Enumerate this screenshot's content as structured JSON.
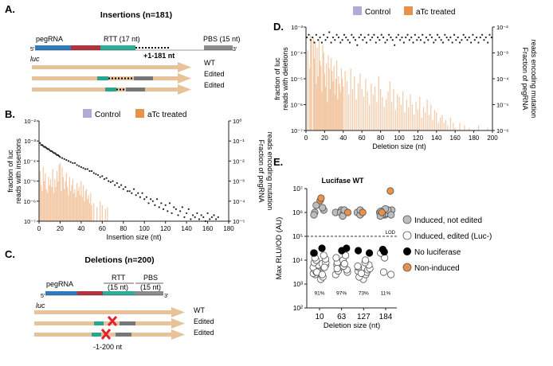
{
  "panels": {
    "A": {
      "letter": "A.",
      "title": "Insertions (n=181)",
      "five_prime": "5'",
      "three_prime": "3'",
      "pegrna": "pegRNA",
      "rtt": "RTT (17 nt)",
      "pbs": "PBS (15 nt)",
      "insert": "+1-181 nt",
      "luc": "luc",
      "rows": [
        "WT",
        "Edited",
        "Edited"
      ]
    },
    "B": {
      "letter": "B.",
      "legend": [
        "Control",
        "aTc treated"
      ]
    },
    "C": {
      "letter": "C.",
      "title": "Deletions (n=200)",
      "five_prime": "5'",
      "three_prime": "3'",
      "pegrna": "pegRNA",
      "rtt": "RTT",
      "rtt_len": "(15 nt)",
      "pbs": "PBS",
      "pbs_len": "(15 nt)",
      "luc": "luc",
      "rows": [
        "WT",
        "Edited",
        "Edited"
      ],
      "deletion": "-1-200 nt"
    },
    "D": {
      "letter": "D.",
      "legend": [
        "Control",
        "aTc treated"
      ]
    },
    "E": {
      "letter": "E.",
      "title": "Lucifase WT",
      "lod": "LOD",
      "legend": [
        "Induced, not edited",
        "Induced, edited (Luc-)",
        "No luciferase",
        "Non-induced"
      ]
    }
  },
  "colors": {
    "control": "#b3a8d6",
    "atc": "#e8914a",
    "bar": "#f3c8a4",
    "arrow": "#e8c39a",
    "teal": "#27a88e",
    "pegrna_blue": "#2e7bbf",
    "pegrna_red": "#b8323e",
    "rtt_green": "#2bae9a",
    "pbs_gray": "#8c8c8c",
    "grey_pt": "#bdbdbd",
    "black_pt": "#000000",
    "orange_pt": "#e8914a",
    "red_x": "#e3232c"
  },
  "chart_data": [
    {
      "id": "B",
      "type": "bar",
      "title": "",
      "xlabel": "Insertion size (nt)",
      "ylabel_left": "fraction of luc reads with insertions",
      "ylabel_right": "Fraction of pegRNA reads encoding mutation",
      "x_ticks": [
        0,
        20,
        40,
        60,
        80,
        100,
        120,
        140,
        160,
        180
      ],
      "xlim": [
        0,
        180
      ],
      "y_left_ticks": [
        -7,
        -6,
        -5,
        -4,
        -3,
        -2
      ],
      "y_left_labels": [
        "10⁻⁷",
        "10⁻⁶",
        "10⁻⁵",
        "10⁻⁴",
        "10⁻³",
        "10⁻²"
      ],
      "y_right_ticks": [
        -5,
        -4,
        -3,
        -2,
        -1,
        0
      ],
      "y_right_labels": [
        "10⁻⁵",
        "10⁻⁴",
        "10⁻³",
        "10⁻²",
        "10⁻¹",
        "10⁰"
      ],
      "series": [
        {
          "name": "aTc treated (luc reads, log10)",
          "x": [
            1,
            2,
            3,
            4,
            5,
            6,
            7,
            8,
            9,
            10,
            11,
            12,
            13,
            14,
            15,
            16,
            17,
            18,
            19,
            20,
            21,
            22,
            23,
            24,
            25,
            26,
            27,
            28,
            29,
            30,
            31,
            32,
            33,
            34,
            35,
            36,
            37,
            38,
            39,
            40,
            41,
            42,
            43,
            44,
            45,
            46,
            47,
            48,
            49,
            50,
            52,
            55,
            58,
            60,
            63,
            65
          ],
          "values": [
            -4.5,
            -5.2,
            -5.5,
            -4.3,
            -5.0,
            -4.6,
            -5.4,
            -5.6,
            -4.8,
            -5.2,
            -4.9,
            -5.3,
            -4.4,
            -5.6,
            -4.9,
            -5.3,
            -4.5,
            -5.0,
            -4.2,
            -4.1,
            -5.5,
            -4.3,
            -4.8,
            -5.4,
            -5.0,
            -4.6,
            -5.3,
            -5.7,
            -4.8,
            -5.5,
            -5.2,
            -4.9,
            -5.6,
            -5.4,
            -5.8,
            -5.1,
            -5.5,
            -5.3,
            -5.7,
            -5.0,
            -5.8,
            -5.2,
            -6.0,
            -5.5,
            -5.4,
            -5.9,
            -5.7,
            -6.1,
            -5.6,
            -6.2,
            -6.1,
            -6.3,
            -6.0,
            -6.2,
            -6.4,
            -6.3
          ]
        },
        {
          "name": "pegRNA reads encoding mutation (log10)",
          "x": [
            1,
            2,
            3,
            4,
            5,
            6,
            7,
            8,
            9,
            10,
            11,
            12,
            13,
            14,
            15,
            16,
            17,
            18,
            19,
            20,
            22,
            24,
            26,
            28,
            30,
            32,
            34,
            36,
            38,
            40,
            42,
            44,
            46,
            48,
            50,
            52,
            54,
            56,
            58,
            60,
            62,
            64,
            66,
            68,
            70,
            72,
            74,
            76,
            78,
            80,
            82,
            84,
            86,
            88,
            90,
            92,
            94,
            96,
            98,
            100,
            102,
            104,
            106,
            108,
            110,
            112,
            114,
            116,
            118,
            120,
            122,
            124,
            126,
            128,
            130,
            132,
            134,
            136,
            138,
            140,
            142,
            144,
            146,
            148,
            150,
            152,
            154,
            156,
            158,
            160,
            162,
            164,
            166,
            168,
            170
          ],
          "values": [
            -1.1,
            -1.2,
            -1.2,
            -1.25,
            -1.3,
            -1.3,
            -1.35,
            -1.4,
            -1.4,
            -1.45,
            -1.5,
            -1.5,
            -1.55,
            -1.6,
            -1.6,
            -1.65,
            -1.7,
            -1.7,
            -1.75,
            -1.8,
            -1.85,
            -1.9,
            -1.95,
            -2.0,
            -2.05,
            -2.1,
            -2.1,
            -2.2,
            -2.25,
            -2.3,
            -2.35,
            -2.4,
            -2.4,
            -2.5,
            -2.5,
            -2.6,
            -2.65,
            -2.7,
            -2.8,
            -2.75,
            -2.9,
            -2.85,
            -3.0,
            -3.05,
            -3.0,
            -3.2,
            -3.1,
            -3.3,
            -3.2,
            -3.4,
            -3.3,
            -3.5,
            -3.5,
            -3.6,
            -3.4,
            -3.7,
            -3.6,
            -3.8,
            -3.6,
            -3.9,
            -3.8,
            -4.1,
            -3.9,
            -4.0,
            -4.2,
            -3.9,
            -4.3,
            -4.1,
            -4.4,
            -4.2,
            -4.5,
            -4.1,
            -4.6,
            -4.3,
            -4.4,
            -4.7,
            -4.5,
            -4.3,
            -4.8,
            -4.6,
            -4.4,
            -4.9,
            -4.7,
            -4.8,
            -4.6,
            -4.9,
            -4.7,
            -4.8,
            -5.0,
            -4.6,
            -4.9,
            -4.8,
            -4.7,
            -4.9,
            -4.8
          ]
        }
      ]
    },
    {
      "id": "D",
      "type": "bar",
      "title": "",
      "xlabel": "Deletion size (nt)",
      "ylabel_left": "fraction of luc reads with deletions",
      "ylabel_right": "Fraction of pegRNA reads encoding mutation",
      "x_ticks": [
        0,
        20,
        40,
        60,
        80,
        100,
        120,
        140,
        160,
        180,
        200
      ],
      "xlim": [
        0,
        200
      ],
      "y_left_ticks": [
        -7,
        -6,
        -5,
        -4,
        -3
      ],
      "y_left_labels": [
        "10⁻⁷",
        "10⁻⁶",
        "10⁻⁵",
        "10⁻⁴",
        "10⁻³"
      ],
      "y_right_ticks": [
        -6,
        -5,
        -4,
        -3,
        -2
      ],
      "y_right_labels": [
        "10⁻⁶",
        "10⁻⁵",
        "10⁻⁴",
        "10⁻³",
        "10⁻²"
      ],
      "series": [
        {
          "name": "aTc treated (luc reads, log10)",
          "x": [
            2,
            4,
            5,
            6,
            8,
            9,
            10,
            11,
            12,
            13,
            14,
            15,
            16,
            17,
            18,
            19,
            20,
            21,
            22,
            23,
            24,
            25,
            26,
            27,
            28,
            29,
            30,
            31,
            32,
            33,
            34,
            35,
            36,
            37,
            38,
            39,
            40,
            42,
            44,
            46,
            48,
            50,
            52,
            54,
            56,
            58,
            60,
            62,
            64,
            66,
            68,
            70,
            72,
            74,
            76,
            78,
            80,
            82,
            84,
            86,
            88,
            90,
            92,
            94,
            96,
            98,
            100,
            102,
            104,
            106,
            108,
            110,
            112,
            114,
            116,
            118,
            120,
            122,
            124,
            126,
            128,
            130,
            132,
            134,
            136,
            138,
            140,
            142,
            144,
            146,
            148,
            150,
            152,
            155,
            158,
            160,
            165,
            170,
            175,
            185,
            195
          ],
          "values": [
            -3.9,
            -4.6,
            -3.3,
            -3.5,
            -3.4,
            -4.2,
            -3.6,
            -5.2,
            -3.8,
            -4.9,
            -3.5,
            -4.3,
            -4.5,
            -5.5,
            -3.7,
            -4.0,
            -4.8,
            -5.3,
            -4.4,
            -5.9,
            -4.1,
            -4.6,
            -5.4,
            -4.2,
            -4.7,
            -5.1,
            -4.5,
            -5.6,
            -5.0,
            -4.3,
            -5.8,
            -4.9,
            -5.2,
            -5.5,
            -4.6,
            -5.0,
            -5.3,
            -4.7,
            -5.1,
            -5.6,
            -4.6,
            -5.4,
            -4.9,
            -5.8,
            -5.2,
            -4.8,
            -5.4,
            -5.7,
            -5.0,
            -5.5,
            -6.0,
            -5.2,
            -5.6,
            -5.3,
            -5.9,
            -4.9,
            -5.4,
            -5.7,
            -6.1,
            -5.8,
            -5.5,
            -5.1,
            -5.9,
            -5.4,
            -6.2,
            -5.6,
            -5.7,
            -6.0,
            -5.5,
            -6.3,
            -5.8,
            -6.1,
            -5.6,
            -6.0,
            -6.4,
            -5.9,
            -6.2,
            -5.7,
            -6.5,
            -6.1,
            -6.3,
            -5.8,
            -6.4,
            -6.0,
            -6.6,
            -6.2,
            -6.3,
            -6.7,
            -6.5,
            -6.4,
            -6.7,
            -6.6,
            -6.8,
            -6.5,
            -6.7,
            -6.9,
            -6.7,
            -6.8,
            -6.9,
            -6.8,
            -6.9
          ]
        },
        {
          "name": "pegRNA reads encoding mutation (log10)",
          "x": [
            1,
            3,
            5,
            7,
            9,
            11,
            13,
            15,
            17,
            19,
            21,
            23,
            25,
            27,
            29,
            31,
            33,
            35,
            37,
            39,
            41,
            43,
            45,
            47,
            49,
            51,
            53,
            55,
            57,
            59,
            61,
            63,
            65,
            67,
            69,
            71,
            73,
            75,
            77,
            79,
            81,
            83,
            85,
            87,
            89,
            91,
            93,
            95,
            97,
            99,
            101,
            103,
            105,
            107,
            109,
            111,
            113,
            115,
            117,
            119,
            121,
            123,
            125,
            127,
            129,
            131,
            133,
            135,
            137,
            139,
            141,
            143,
            145,
            147,
            149,
            151,
            153,
            155,
            157,
            159,
            161,
            163,
            165,
            167,
            169,
            171,
            173,
            175,
            177,
            179,
            181,
            183,
            185,
            187,
            189,
            191,
            193,
            195,
            197,
            199
          ],
          "values": [
            -2.4,
            -2.3,
            -2.5,
            -2.4,
            -2.6,
            -2.3,
            -2.5,
            -2.4,
            -2.6,
            -2.3,
            -2.5,
            -2.4,
            -2.2,
            -2.6,
            -2.4,
            -2.5,
            -2.3,
            -2.4,
            -2.6,
            -2.5,
            -2.3,
            -2.4,
            -2.5,
            -2.6,
            -2.3,
            -2.4,
            -2.5,
            -2.7,
            -2.4,
            -2.3,
            -2.5,
            -2.4,
            -2.6,
            -2.3,
            -2.5,
            -2.4,
            -2.3,
            -2.6,
            -2.4,
            -2.5,
            -2.3,
            -2.4,
            -2.6,
            -2.5,
            -2.3,
            -2.4,
            -2.5,
            -2.7,
            -2.4,
            -2.3,
            -2.5,
            -2.4,
            -2.6,
            -2.4,
            -2.3,
            -2.5,
            -2.4,
            -2.6,
            -2.3,
            -2.5,
            -2.4,
            -2.5,
            -2.3,
            -2.6,
            -2.4,
            -2.5,
            -2.3,
            -2.4,
            -2.6,
            -2.5,
            -2.3,
            -2.4,
            -2.5,
            -2.6,
            -2.3,
            -2.4,
            -2.5,
            -2.4,
            -2.6,
            -2.3,
            -2.5,
            -2.4,
            -2.6,
            -2.5,
            -2.3,
            -2.4,
            -2.5,
            -2.4,
            -2.6,
            -2.3,
            -2.5,
            -2.4,
            -2.6,
            -2.4,
            -2.3,
            -2.5,
            -2.4,
            -2.6,
            -2.3,
            -2.4
          ]
        }
      ]
    },
    {
      "id": "E",
      "type": "scatter",
      "title": "Lucifase WT",
      "xlabel": "Deletion size (nt)",
      "ylabel": "Max RLU/OD (AU)",
      "categories": [
        "10",
        "63",
        "127",
        "184"
      ],
      "y_ticks": [
        2,
        3,
        4,
        5,
        6,
        7
      ],
      "y_labels": [
        "10²",
        "10³",
        "10⁴",
        "10⁵",
        "10⁶",
        "10⁷"
      ],
      "lod": 5,
      "percent_labels": [
        "91%",
        "97%",
        "73%",
        "11%"
      ],
      "series": [
        {
          "name": "Induced, not edited",
          "values": [
            [
              6.0,
              6.1,
              6.2,
              5.9,
              6.3
            ],
            [
              5.9,
              6.0,
              6.1,
              6.0,
              5.95,
              6.05,
              5.85,
              6.1
            ],
            [
              6.0,
              5.9,
              6.1
            ],
            [
              5.9,
              6.0,
              6.1,
              6.05,
              5.95,
              6.0,
              5.9,
              6.1,
              6.0,
              5.85,
              6.15,
              5.9,
              6.05
            ]
          ]
        },
        {
          "name": "Induced, edited (Luc-)",
          "values": [
            [
              3.2,
              3.3,
              3.4,
              3.45,
              3.5,
              3.55,
              3.6,
              3.6,
              3.65,
              3.7,
              3.75,
              3.8,
              3.8,
              3.85,
              3.9,
              3.9,
              4.0,
              4.05,
              4.1,
              4.2,
              4.3,
              3.5,
              3.7,
              3.4
            ],
            [
              3.4,
              3.5,
              3.6,
              3.7,
              3.75,
              3.8,
              3.9,
              4.0,
              4.1,
              4.2,
              3.55,
              3.65,
              3.85
            ],
            [
              3.2,
              3.3,
              3.4,
              3.5,
              3.55,
              3.6,
              3.65,
              3.7,
              3.8,
              3.9,
              4.0,
              3.45,
              3.75
            ],
            [
              3.4,
              3.5,
              4.1,
              4.3
            ]
          ]
        },
        {
          "name": "No luciferase",
          "values": [
            [
              4.3,
              4.5
            ],
            [
              4.4,
              4.5
            ],
            [
              4.3,
              4.4
            ],
            [
              4.35,
              4.45
            ]
          ]
        },
        {
          "name": "Non-induced",
          "values": [
            [
              6.5,
              6.6
            ],
            [
              6.0
            ],
            [
              6.0
            ],
            [
              6.9,
              6.0
            ]
          ]
        }
      ]
    }
  ]
}
